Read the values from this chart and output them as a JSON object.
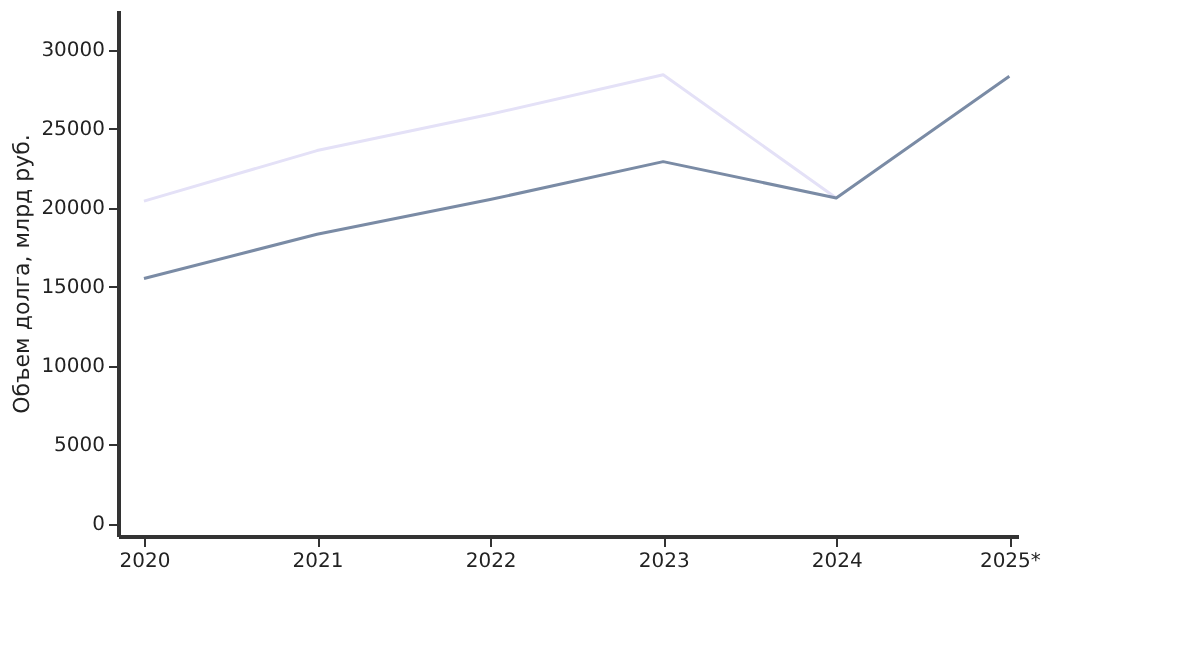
{
  "chart_data": {
    "type": "line",
    "ylabel": "Объем долга, млрд руб.",
    "categories": [
      "2020",
      "2021",
      "2022",
      "2023",
      "2024",
      "2025*"
    ],
    "series": [
      {
        "color": "#e4e1f7",
        "values": [
          20400,
          23600,
          25900,
          28400,
          20600,
          null
        ]
      },
      {
        "color": "#7a8ba5",
        "values": [
          15500,
          18300,
          20500,
          22900,
          20600,
          28300
        ]
      }
    ],
    "ylim": [
      -800,
      32500
    ],
    "yticks": [
      0,
      5000,
      10000,
      15000,
      20000,
      25000,
      30000
    ],
    "grid": false,
    "marker": "none",
    "line_style": "solid"
  }
}
